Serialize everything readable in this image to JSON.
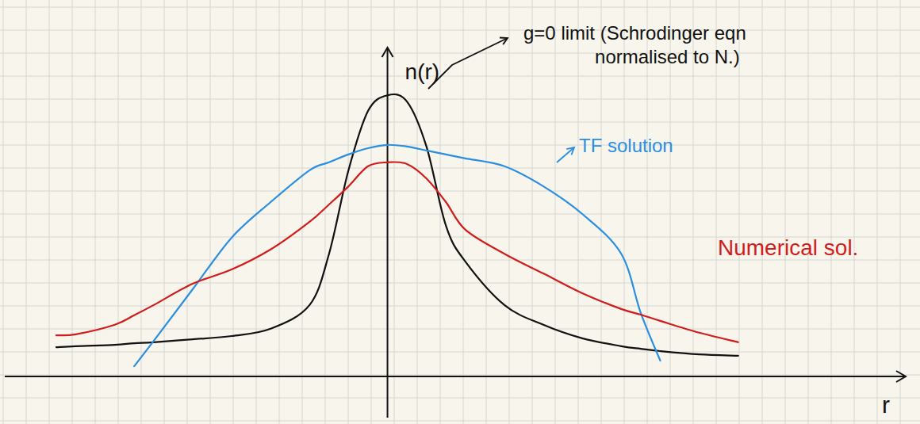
{
  "chart_data": {
    "type": "line",
    "x_label": "r",
    "y_label": "n(r)",
    "x": [
      -8.5,
      -8,
      -7,
      -6.5,
      -6,
      -5,
      -4,
      -3,
      -2,
      -1.5,
      -1,
      -0.5,
      0,
      0.5,
      1,
      1.5,
      2,
      3,
      4,
      5,
      6,
      6.5,
      7,
      8,
      9
    ],
    "series": [
      {
        "name": "g=0 limit (Schrodinger eqn normalised to N.)",
        "color": "#111111",
        "values": [
          0.89,
          0.92,
          0.96,
          1.01,
          1.04,
          1.13,
          1.23,
          1.45,
          2.17,
          3.73,
          6.27,
          8.07,
          8.55,
          8.36,
          6.99,
          4.58,
          3.49,
          2.17,
          1.57,
          1.16,
          0.92,
          0.84,
          0.77,
          0.67,
          0.63
        ]
      },
      {
        "name": "TF solution",
        "color": "#2a8fe0",
        "values": [
          null,
          null,
          null,
          0.31,
          1.08,
          2.65,
          4.22,
          5.3,
          6.27,
          6.51,
          6.75,
          6.94,
          7.04,
          6.99,
          6.87,
          6.75,
          6.63,
          6.39,
          5.78,
          4.94,
          3.73,
          1.93,
          0.48,
          null,
          null
        ]
      },
      {
        "name": "Numerical sol.",
        "color": "#d01c1c",
        "values": [
          1.25,
          1.28,
          1.57,
          1.86,
          2.17,
          2.82,
          3.25,
          3.86,
          4.7,
          5.23,
          5.78,
          6.39,
          6.51,
          6.46,
          6.02,
          5.3,
          4.46,
          3.73,
          3.13,
          2.53,
          2.05,
          1.88,
          1.69,
          1.33,
          1.04
        ]
      }
    ],
    "xlim": [
      -9.7,
      13.3
    ],
    "ylim": [
      0,
      10
    ],
    "grid": true,
    "tick_labels": false
  }
}
